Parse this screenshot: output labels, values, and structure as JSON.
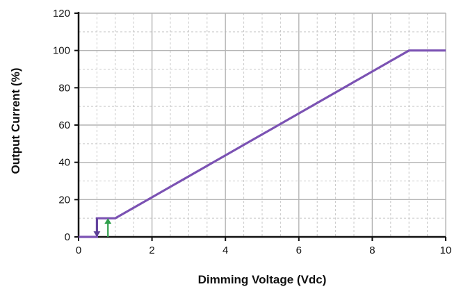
{
  "chart_data": {
    "type": "line",
    "xlabel": "Dimming Voltage (Vdc)",
    "ylabel": "Output Current (%)",
    "xlim": [
      0,
      10
    ],
    "ylim": [
      0,
      120
    ],
    "x_ticks": [
      0,
      2,
      4,
      6,
      8,
      10
    ],
    "y_ticks": [
      0,
      20,
      40,
      60,
      80,
      100,
      120
    ],
    "x_tick_labels": [
      "0",
      "2",
      "4",
      "6",
      "8",
      "10"
    ],
    "y_tick_labels": [
      "0",
      "20",
      "40",
      "60",
      "80",
      "100",
      "120"
    ],
    "x_minor_step": 0.5,
    "y_minor_step": 10,
    "grid": true,
    "series": [
      {
        "color": "#7b52b3",
        "x": [
          0,
          0.5,
          0.5,
          1,
          9,
          10
        ],
        "y": [
          0,
          0,
          10,
          10,
          100,
          100
        ]
      }
    ],
    "hysteresis_arrows": [
      {
        "direction": "down",
        "x": 0.5,
        "y_from": 10,
        "y_to": 0,
        "color": "#5b3e96"
      },
      {
        "direction": "up",
        "x": 0.8,
        "y_from": 0,
        "y_to": 10,
        "color": "#2e9f4a"
      }
    ]
  }
}
